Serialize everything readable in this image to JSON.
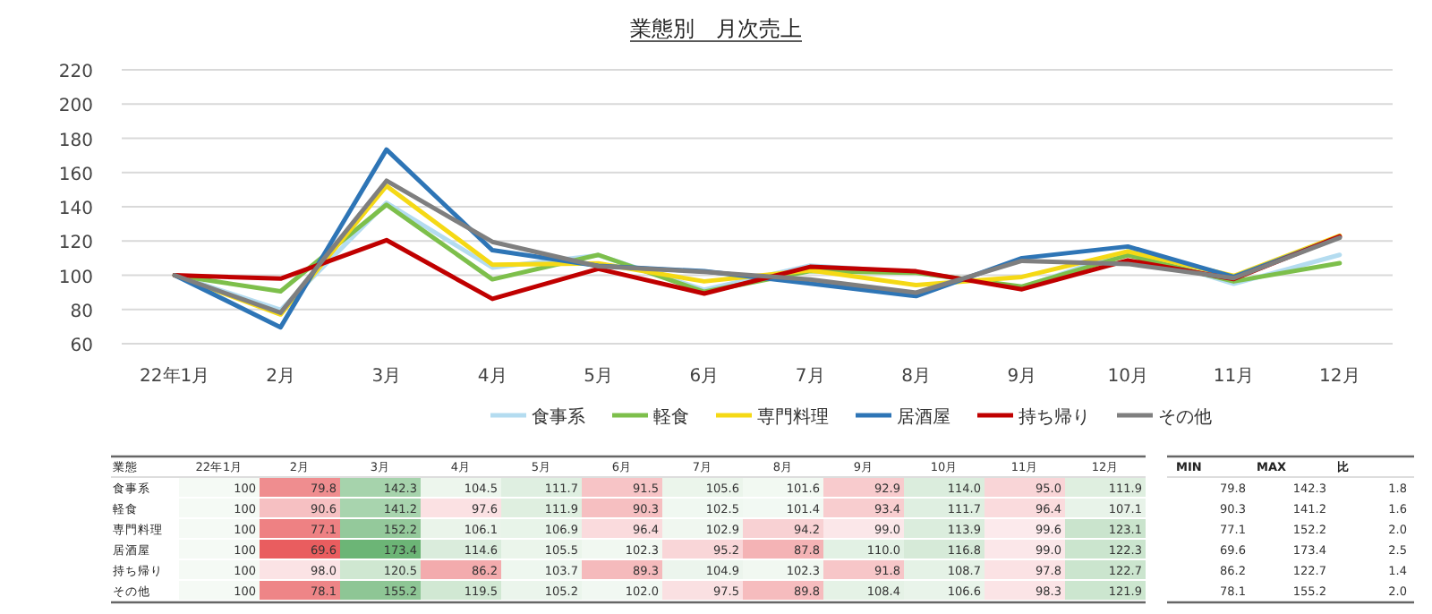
{
  "chart_data": [
    {
      "type": "line",
      "title": "業態別　月次売上",
      "categories": [
        "22年1月",
        "2月",
        "3月",
        "4月",
        "5月",
        "6月",
        "7月",
        "8月",
        "9月",
        "10月",
        "11月",
        "12月"
      ],
      "ylim": [
        60,
        220
      ],
      "yticks": [
        60,
        80,
        100,
        120,
        140,
        160,
        180,
        200,
        220
      ],
      "grid": "y",
      "legend": "bottom",
      "marker": "none",
      "line_style": "solid",
      "series": [
        {
          "name": "食事系",
          "color": "#b4dcf0",
          "values": [
            100,
            79.8,
            142.3,
            104.5,
            111.7,
            91.5,
            105.6,
            101.6,
            92.9,
            114.0,
            95.0,
            111.9
          ]
        },
        {
          "name": "軽食",
          "color": "#7dbf4b",
          "values": [
            100,
            90.6,
            141.2,
            97.6,
            111.9,
            90.3,
            102.5,
            101.4,
            93.4,
            111.7,
            96.4,
            107.1
          ]
        },
        {
          "name": "専門料理",
          "color": "#f5d915",
          "values": [
            100,
            77.1,
            152.2,
            106.1,
            106.9,
            96.4,
            102.9,
            94.2,
            99.0,
            113.9,
            99.6,
            123.1
          ]
        },
        {
          "name": "居酒屋",
          "color": "#2e75b6",
          "values": [
            100,
            69.6,
            173.4,
            114.6,
            105.5,
            102.3,
            95.2,
            87.8,
            110.0,
            116.8,
            99.0,
            122.3
          ]
        },
        {
          "name": "持ち帰り",
          "color": "#c00000",
          "values": [
            100,
            98.0,
            120.5,
            86.2,
            103.7,
            89.3,
            104.9,
            102.3,
            91.8,
            108.7,
            97.8,
            122.7
          ]
        },
        {
          "name": "その他",
          "color": "#7f7f7f",
          "values": [
            100,
            78.1,
            155.2,
            119.5,
            105.2,
            102.0,
            97.5,
            89.8,
            108.4,
            106.6,
            98.3,
            121.9
          ]
        }
      ]
    },
    {
      "type": "heatmap",
      "categories": [
        "22年1月",
        "2月",
        "3月",
        "4月",
        "5月",
        "6月",
        "7月",
        "8月",
        "9月",
        "10月",
        "11月",
        "12月"
      ],
      "y_categories": [
        "食事系",
        "軽食",
        "専門料理",
        "居酒屋",
        "持ち帰り",
        "その他"
      ],
      "cells": [
        [
          100,
          79.8,
          142.3,
          104.5,
          111.7,
          91.5,
          105.6,
          101.6,
          92.9,
          114.0,
          95.0,
          111.9
        ],
        [
          100,
          90.6,
          141.2,
          97.6,
          111.9,
          90.3,
          102.5,
          101.4,
          93.4,
          111.7,
          96.4,
          107.1
        ],
        [
          100,
          77.1,
          152.2,
          106.1,
          106.9,
          96.4,
          102.9,
          94.2,
          99.0,
          113.9,
          99.6,
          123.1
        ],
        [
          100,
          69.6,
          173.4,
          114.6,
          105.5,
          102.3,
          95.2,
          87.8,
          110.0,
          116.8,
          99.0,
          122.3
        ],
        [
          100,
          98.0,
          120.5,
          86.2,
          103.7,
          89.3,
          104.9,
          102.3,
          91.8,
          108.7,
          97.8,
          122.7
        ],
        [
          100,
          78.1,
          155.2,
          119.5,
          105.2,
          102.0,
          97.5,
          89.8,
          108.4,
          106.6,
          98.3,
          121.9
        ]
      ],
      "cell_labels": [
        [
          "100",
          "79.8",
          "142.3",
          "104.5",
          "111.7",
          "91.5",
          "105.6",
          "101.6",
          "92.9",
          "114.0",
          "95.0",
          "111.9"
        ],
        [
          "100",
          "90.6",
          "141.2",
          "97.6",
          "111.9",
          "90.3",
          "102.5",
          "101.4",
          "93.4",
          "111.7",
          "96.4",
          "107.1"
        ],
        [
          "100",
          "77.1",
          "152.2",
          "106.1",
          "106.9",
          "96.4",
          "102.9",
          "94.2",
          "99.0",
          "113.9",
          "99.6",
          "123.1"
        ],
        [
          "100",
          "69.6",
          "173.4",
          "114.6",
          "105.5",
          "102.3",
          "95.2",
          "87.8",
          "110.0",
          "116.8",
          "99.0",
          "122.3"
        ],
        [
          "100",
          "98.0",
          "120.5",
          "86.2",
          "103.7",
          "89.3",
          "104.9",
          "102.3",
          "91.8",
          "108.7",
          "97.8",
          "122.7"
        ],
        [
          "100",
          "78.1",
          "155.2",
          "119.5",
          "105.2",
          "102.0",
          "97.5",
          "89.8",
          "108.4",
          "106.6",
          "98.3",
          "121.9"
        ]
      ],
      "annotations": [
        "業態",
        "MIN",
        "MAX",
        "比",
        "79.8",
        "142.3",
        "1.8",
        "90.3",
        "141.2",
        "1.6",
        "77.1",
        "152.2",
        "2.0",
        "69.6",
        "173.4",
        "2.5",
        "86.2",
        "122.7",
        "1.4",
        "78.1",
        "155.2",
        "2.0"
      ]
    }
  ]
}
